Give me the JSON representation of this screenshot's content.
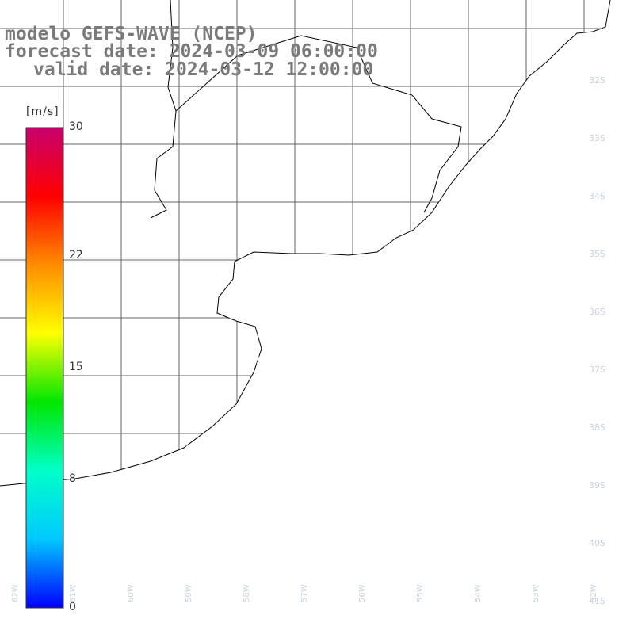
{
  "title": {
    "model": "modelo GEFS-WAVE (NCEP)",
    "forecast": "forecast date: 2024-03-09 06:00:00",
    "valid": "valid date: 2024-03-12 12:00:00"
  },
  "colorbar": {
    "unit": "[m/s]",
    "min": 0,
    "max": 30,
    "ticks": [
      {
        "label": "30",
        "value": 30
      },
      {
        "label": "22",
        "value": 22
      },
      {
        "label": "15",
        "value": 15
      },
      {
        "label": "8",
        "value": 8
      },
      {
        "label": "0",
        "value": 0
      }
    ],
    "colors": [
      "#0000ff",
      "#00c8ff",
      "#00ffc8",
      "#00e600",
      "#ffff00",
      "#ff8c00",
      "#ff0000",
      "#c8006e"
    ]
  },
  "map": {
    "land_color": "#ffffff",
    "coast_color": "#000000",
    "grid_color": "#666666",
    "arrow_color": "#ffffff",
    "lat_labels": [
      "32S",
      "33S",
      "34S",
      "35S",
      "36S",
      "37S",
      "38S",
      "39S",
      "40S",
      "41S"
    ],
    "lon_labels": [
      "62W",
      "61W",
      "60W",
      "59W",
      "58W",
      "57W",
      "56W",
      "55W",
      "54W",
      "53W",
      "52W"
    ]
  }
}
